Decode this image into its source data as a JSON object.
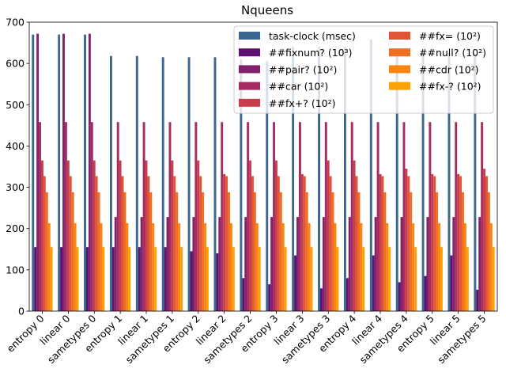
{
  "chart_data": {
    "type": "bar",
    "title": "Nqueens",
    "xlabel": "",
    "ylabel": "",
    "ylim": [
      0,
      700
    ],
    "yticks": [
      0,
      100,
      200,
      300,
      400,
      500,
      600,
      700
    ],
    "legend_position": "top-right",
    "legend_columns": 2,
    "grid": false,
    "categories": [
      "entropy 0",
      "linear 0",
      "sametypes 0",
      "entropy 1",
      "linear 1",
      "sametypes 1",
      "entropy 2",
      "linear 2",
      "sametypes 2",
      "entropy 3",
      "linear 3",
      "sametypes 3",
      "entropy 4",
      "linear 4",
      "sametypes 4",
      "entropy 5",
      "linear 5",
      "sametypes 5"
    ],
    "series": [
      {
        "name": "task-clock (msec)",
        "color": "#3b6791",
        "values": [
          670,
          670,
          670,
          618,
          618,
          615,
          615,
          615,
          610,
          605,
          640,
          640,
          640,
          658,
          630,
          628,
          625,
          625
        ]
      },
      {
        "name": "##fixnum? (10³)",
        "color": "#5c126e",
        "values": [
          155,
          155,
          155,
          155,
          155,
          155,
          145,
          140,
          80,
          65,
          135,
          55,
          80,
          135,
          70,
          85,
          135,
          52
        ]
      },
      {
        "name": "##pair? (10²)",
        "color": "#82206c",
        "values": [
          672,
          672,
          672,
          228,
          228,
          228,
          228,
          228,
          228,
          228,
          228,
          228,
          228,
          228,
          228,
          228,
          228,
          228
        ]
      },
      {
        "name": "##car (10²)",
        "color": "#a52c60",
        "values": [
          458,
          458,
          458,
          458,
          458,
          458,
          458,
          458,
          458,
          458,
          458,
          458,
          458,
          458,
          458,
          458,
          458,
          458
        ]
      },
      {
        "name": "##fx+? (10²)",
        "color": "#c73d4b",
        "values": [
          365,
          365,
          365,
          365,
          365,
          365,
          365,
          332,
          365,
          365,
          332,
          365,
          365,
          332,
          345,
          332,
          332,
          345
        ]
      },
      {
        "name": "##fx= (10²)",
        "color": "#e05536",
        "values": [
          327,
          327,
          327,
          327,
          327,
          327,
          327,
          327,
          327,
          327,
          327,
          327,
          327,
          327,
          327,
          327,
          327,
          327
        ]
      },
      {
        "name": "##null? (10²)",
        "color": "#ef6e22",
        "values": [
          288,
          288,
          288,
          288,
          288,
          288,
          288,
          288,
          288,
          288,
          288,
          288,
          288,
          288,
          288,
          288,
          288,
          288
        ]
      },
      {
        "name": "##cdr (10²)",
        "color": "#f9860e",
        "values": [
          213,
          213,
          213,
          213,
          213,
          213,
          213,
          213,
          213,
          213,
          213,
          213,
          213,
          213,
          213,
          213,
          213,
          213
        ]
      },
      {
        "name": "##fx-? (10²)",
        "color": "#fba20a",
        "values": [
          155,
          155,
          155,
          155,
          155,
          155,
          155,
          155,
          155,
          155,
          155,
          155,
          155,
          155,
          155,
          155,
          155,
          155
        ]
      }
    ]
  }
}
